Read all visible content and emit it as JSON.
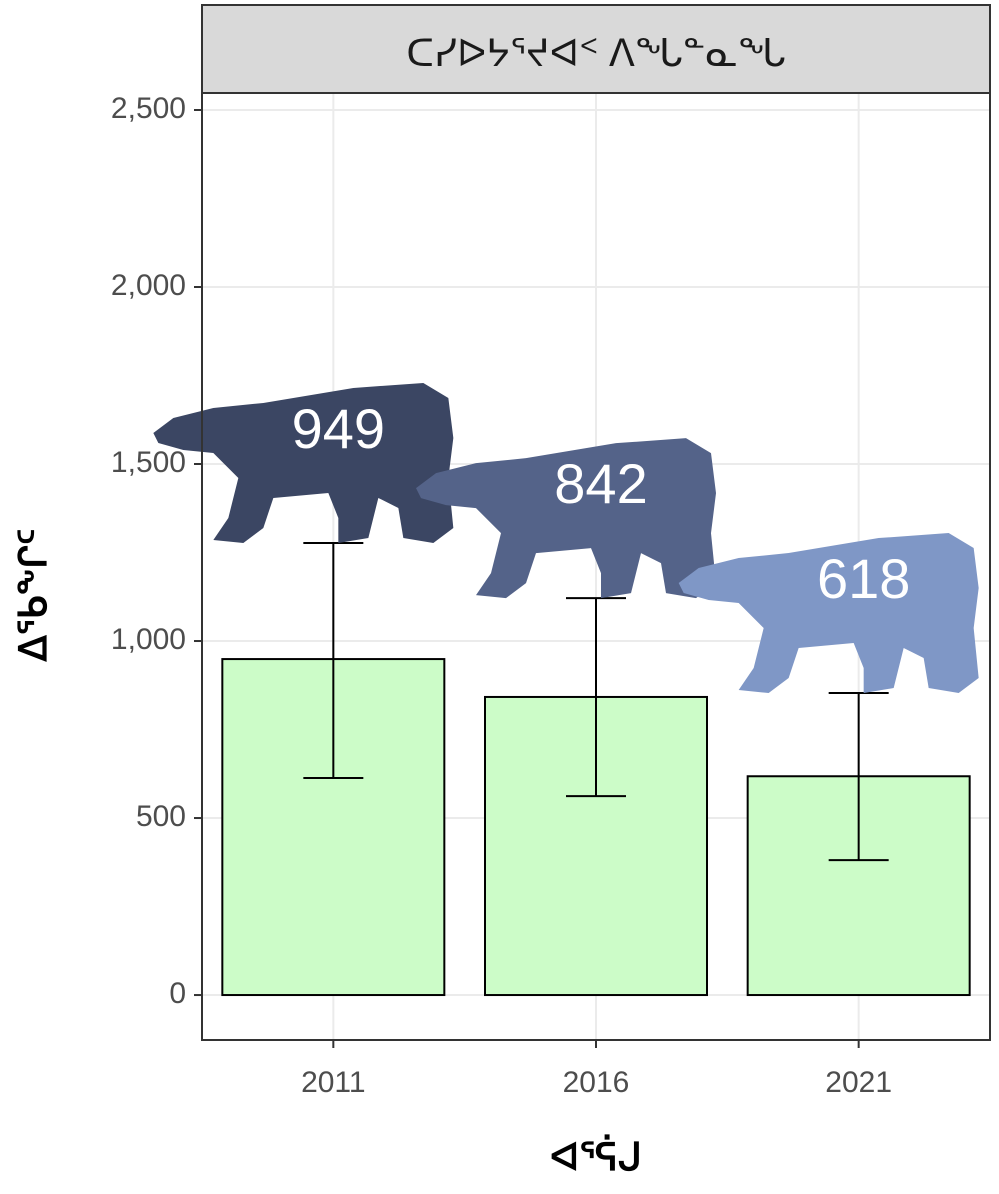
{
  "chart_data": {
    "type": "bar",
    "strip_title": "ᑕᓯᐅᔭᕐᔪᐊᑉ ᐱᖓᓐᓇᖓ",
    "y_label": "ᐃᕐᑲᖕᒋᑦ",
    "x_label": "ᐊᕐᕌᒍ",
    "categories": [
      "2011",
      "2016",
      "2021"
    ],
    "values": [
      949,
      842,
      618
    ],
    "error_low": [
      613,
      562,
      381
    ],
    "error_high": [
      1277,
      1121,
      853
    ],
    "color": "#ccfcc8",
    "label_colors": [
      "#3b4663",
      "#546389",
      "#7f97c6"
    ],
    "ylim": [
      -127,
      2548
    ],
    "yticks": [
      0,
      500,
      {
        "value": 1000,
        "label": "1,000"
      },
      {
        "value": 1500,
        "label": "1,500"
      },
      {
        "value": 2000,
        "label": "2,000"
      },
      {
        "value": 2500,
        "label": "2,500"
      }
    ],
    "grid": true
  }
}
